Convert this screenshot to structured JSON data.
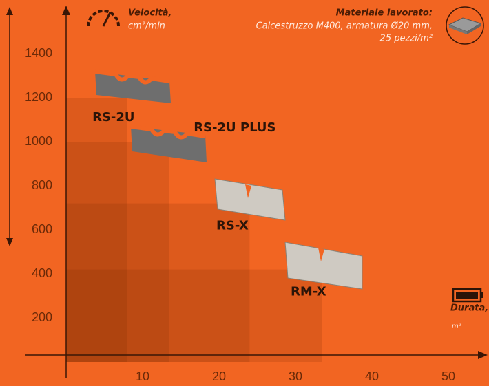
{
  "chart_data": {
    "type": "step-rect",
    "y_label": "Velocità,",
    "y_unit": "cm²/min",
    "material_title": "Materiale lavorato:",
    "material_lines": [
      "Calcestruzzo M400, armatura Ø20 mm,",
      "25 pezzi/m²"
    ],
    "x_label": "Durata,",
    "x_unit": "m²",
    "categories": [
      "RS-2U",
      "RS-2U PLUS",
      "RS-X",
      "RM-X"
    ],
    "x": [
      8,
      13.5,
      24,
      33.5
    ],
    "values": [
      1200,
      1000,
      720,
      420
    ],
    "color": "rgba(110,35,0,0.16)",
    "xlim": [
      0,
      55
    ],
    "ylim": [
      0,
      1600
    ],
    "xticks": [
      10,
      20,
      30,
      40,
      50
    ],
    "yticks": [
      200,
      400,
      600,
      800,
      1000,
      1200,
      1400
    ]
  }
}
